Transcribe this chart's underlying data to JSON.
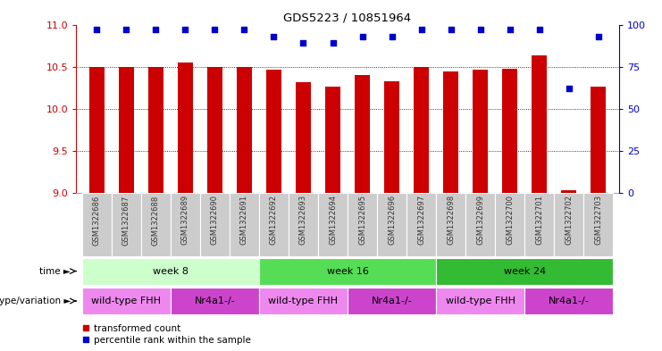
{
  "title": "GDS5223 / 10851964",
  "samples": [
    "GSM1322686",
    "GSM1322687",
    "GSM1322688",
    "GSM1322689",
    "GSM1322690",
    "GSM1322691",
    "GSM1322692",
    "GSM1322693",
    "GSM1322694",
    "GSM1322695",
    "GSM1322696",
    "GSM1322697",
    "GSM1322698",
    "GSM1322699",
    "GSM1322700",
    "GSM1322701",
    "GSM1322702",
    "GSM1322703"
  ],
  "transformed_counts": [
    10.5,
    10.5,
    10.5,
    10.55,
    10.5,
    10.5,
    10.46,
    10.32,
    10.26,
    10.4,
    10.33,
    10.5,
    10.44,
    10.46,
    10.48,
    10.63,
    9.03,
    10.26
  ],
  "percentile_ranks": [
    97,
    97,
    97,
    97,
    97,
    97,
    93,
    89,
    89,
    93,
    93,
    97,
    97,
    97,
    97,
    97,
    62,
    93
  ],
  "ylim_left": [
    9,
    11
  ],
  "ylim_right": [
    0,
    100
  ],
  "yticks_left": [
    9,
    9.5,
    10,
    10.5,
    11
  ],
  "yticks_right": [
    0,
    25,
    50,
    75,
    100
  ],
  "bar_color": "#cc0000",
  "dot_color": "#0000cc",
  "bar_width": 0.5,
  "time_groups": [
    {
      "label": "week 8",
      "start": 0,
      "end": 5,
      "color": "#ccffcc"
    },
    {
      "label": "week 16",
      "start": 6,
      "end": 11,
      "color": "#55dd55"
    },
    {
      "label": "week 24",
      "start": 12,
      "end": 17,
      "color": "#33bb33"
    }
  ],
  "genotype_groups": [
    {
      "label": "wild-type FHH",
      "start": 0,
      "end": 2,
      "color": "#ee88ee"
    },
    {
      "label": "Nr4a1-/-",
      "start": 3,
      "end": 5,
      "color": "#cc44cc"
    },
    {
      "label": "wild-type FHH",
      "start": 6,
      "end": 8,
      "color": "#ee88ee"
    },
    {
      "label": "Nr4a1-/-",
      "start": 9,
      "end": 11,
      "color": "#cc44cc"
    },
    {
      "label": "wild-type FHH",
      "start": 12,
      "end": 14,
      "color": "#ee88ee"
    },
    {
      "label": "Nr4a1-/-",
      "start": 15,
      "end": 17,
      "color": "#cc44cc"
    }
  ],
  "legend_items": [
    {
      "label": "transformed count",
      "color": "#cc0000"
    },
    {
      "label": "percentile rank within the sample",
      "color": "#0000cc"
    }
  ],
  "background_color": "#ffffff",
  "tick_color_left": "#cc0000",
  "tick_color_right": "#0000cc",
  "sample_label_bg": "#cccccc"
}
